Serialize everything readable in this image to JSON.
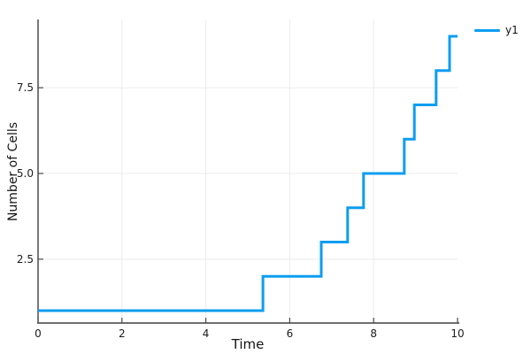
{
  "figure": {
    "background": "#ffffff"
  },
  "chart_data": {
    "type": "line",
    "subtype": "step-post",
    "title": "",
    "xlabel": "Time",
    "ylabel": "Number of Cells",
    "xlim": [
      0,
      10
    ],
    "ylim": [
      0.639,
      9.49
    ],
    "xticks": {
      "values": [
        0,
        2,
        4,
        6,
        8,
        10
      ],
      "labels": [
        "0",
        "2",
        "4",
        "6",
        "8",
        "10"
      ]
    },
    "yticks": {
      "values": [
        2.5,
        5.0,
        7.5
      ],
      "labels": [
        "2.5",
        "5.0",
        "7.5"
      ]
    },
    "grid": {
      "x_values": [
        2,
        4,
        6,
        8
      ],
      "y_values": [
        2.5,
        5.0,
        7.5
      ],
      "color": "#ebebeb"
    },
    "axis_style": {
      "left_spine_color": "#3f3f3f",
      "bottom_spine_color": "#6f6f6f",
      "tick_color": "#4a4a4a",
      "tick_label_color": "#1b1b1b"
    },
    "legend": {
      "position": "outer-top-right",
      "entries": [
        {
          "label": "y1",
          "color": "#0d9df0"
        }
      ]
    },
    "series": [
      {
        "name": "y1",
        "color": "#0d9df0",
        "line_width": 3,
        "step_points": [
          [
            0,
            1
          ],
          [
            5.36,
            2
          ],
          [
            6.75,
            3
          ],
          [
            7.38,
            4
          ],
          [
            7.76,
            5
          ],
          [
            8.73,
            6
          ],
          [
            8.97,
            7
          ],
          [
            9.49,
            8
          ],
          [
            9.81,
            9
          ],
          [
            10,
            9
          ]
        ]
      }
    ]
  }
}
